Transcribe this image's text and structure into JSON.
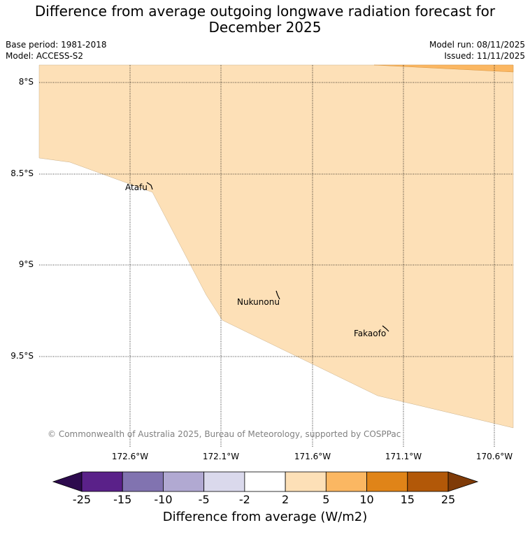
{
  "title": "Difference from average outgoing longwave radiation forecast for December 2025",
  "meta": {
    "base_period": "Base period: 1981-2018",
    "model": "Model: ACCESS-S2",
    "model_run": "Model run: 08/11/2025",
    "issued": "Issued: 11/11/2025"
  },
  "axes": {
    "lat_labels": [
      "8°S",
      "8.5°S",
      "9°S",
      "9.5°S"
    ],
    "lon_labels": [
      "172.6°W",
      "172.1°W",
      "171.6°W",
      "171.1°W",
      "170.6°W"
    ]
  },
  "places": {
    "atafu": "Atafu",
    "nukunonu": "Nukunonu",
    "fakaofo": "Fakaofo"
  },
  "copyright": "© Commonwealth of Australia 2025, Bureau of Meteorology, supported by COSPPac",
  "colorbar": {
    "label": "Difference from average (W/m2)",
    "ticks": [
      "-25",
      "-15",
      "-10",
      "-5",
      "-2",
      "2",
      "5",
      "10",
      "15",
      "25"
    ],
    "colors": {
      "under": "#2d0a4e",
      "bins": [
        "#5a2189",
        "#8173b0",
        "#b1a9d2",
        "#dad9ec",
        "#ffffff",
        "#fde0b7",
        "#fbb762",
        "#e08418",
        "#b25808"
      ],
      "over": "#7f3b08"
    }
  },
  "map_colors": {
    "light_orange": "#fde0b7",
    "orange": "#fbb762"
  }
}
